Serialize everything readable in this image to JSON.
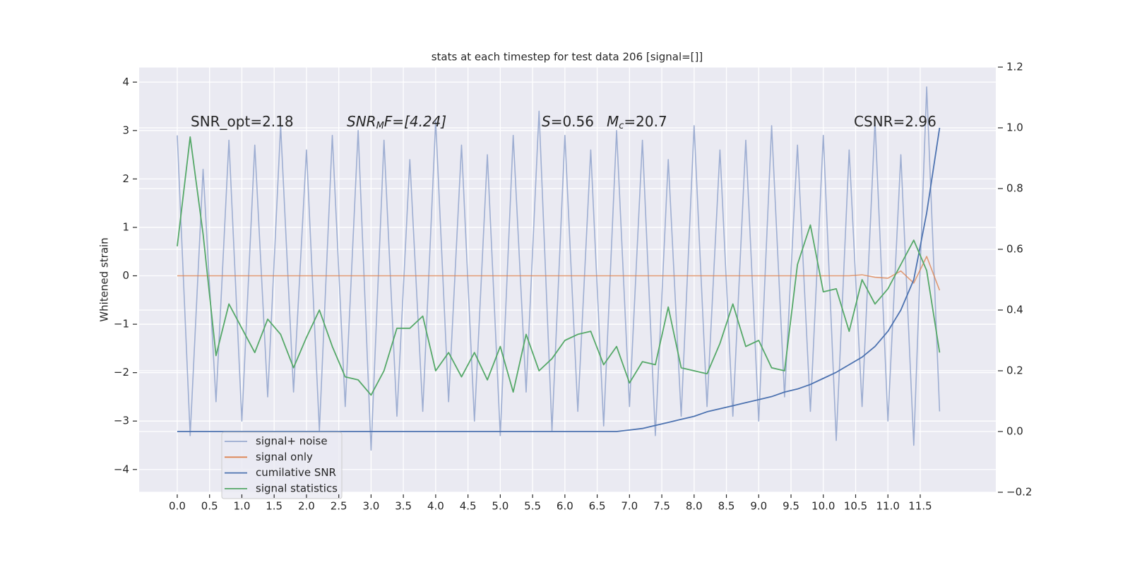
{
  "chart_data": {
    "type": "line",
    "title": "stats at each timestep for test data 206 [signal=[]]",
    "ylabel": "Whitened strain",
    "grid": true,
    "legend": "lower left",
    "xlim": [
      -0.59,
      12.67
    ],
    "ylim": [
      -4.47,
      4.31
    ],
    "y2lim": [
      -0.2,
      1.2
    ],
    "xticks": [
      {
        "value": 0,
        "label": "0.0"
      },
      {
        "value": 0.5,
        "label": "0.5"
      },
      {
        "value": 1,
        "label": "1.0"
      },
      {
        "value": 1.5,
        "label": "1.5"
      },
      {
        "value": 2,
        "label": "2.0"
      },
      {
        "value": 2.5,
        "label": "2.5"
      },
      {
        "value": 3,
        "label": "3.0"
      },
      {
        "value": 3.5,
        "label": "3.5"
      },
      {
        "value": 4,
        "label": "4.0"
      },
      {
        "value": 4.5,
        "label": "4.5"
      },
      {
        "value": 5,
        "label": "5.0"
      },
      {
        "value": 5.5,
        "label": "5.5"
      },
      {
        "value": 6,
        "label": "6.0"
      },
      {
        "value": 6.5,
        "label": "6.5"
      },
      {
        "value": 7,
        "label": "7.0"
      },
      {
        "value": 7.5,
        "label": "7.5"
      },
      {
        "value": 8,
        "label": "8.0"
      },
      {
        "value": 8.5,
        "label": "8.5"
      },
      {
        "value": 9,
        "label": "9.0"
      },
      {
        "value": 9.5,
        "label": "9.5"
      },
      {
        "value": 10,
        "label": "10.0"
      },
      {
        "value": 10.5,
        "label": "10.5"
      },
      {
        "value": 11,
        "label": "11.0"
      },
      {
        "value": 11.5,
        "label": "11.5"
      }
    ],
    "yticks": [
      {
        "value": -4,
        "label": "−4"
      },
      {
        "value": -3,
        "label": "−3"
      },
      {
        "value": -2,
        "label": "−2"
      },
      {
        "value": -1,
        "label": "−1"
      },
      0,
      1,
      2,
      3,
      4
    ],
    "y2ticks": [
      {
        "value": -0.2,
        "label": "−0.2"
      },
      {
        "value": 0,
        "label": "0.0"
      },
      {
        "value": 0.2,
        "label": "0.2"
      },
      {
        "value": 0.4,
        "label": "0.4"
      },
      {
        "value": 0.6,
        "label": "0.6"
      },
      {
        "value": 0.8,
        "label": "0.8"
      },
      {
        "value": 1,
        "label": "1.0"
      },
      {
        "value": 1.2,
        "label": "1.2"
      }
    ],
    "x": [
      0,
      0.2,
      0.4,
      0.6,
      0.8,
      1,
      1.2,
      1.4,
      1.6,
      1.8,
      2,
      2.2,
      2.4,
      2.6,
      2.8,
      3,
      3.2,
      3.4,
      3.6,
      3.8,
      4,
      4.2,
      4.4,
      4.6,
      4.8,
      5,
      5.2,
      5.4,
      5.6,
      5.8,
      6,
      6.2,
      6.4,
      6.6,
      6.8,
      7,
      7.2,
      7.4,
      7.6,
      7.8,
      8,
      8.2,
      8.4,
      8.6,
      8.8,
      9,
      9.2,
      9.4,
      9.6,
      9.8,
      10,
      10.2,
      10.4,
      10.6,
      10.8,
      11,
      11.2,
      11.4,
      11.6,
      11.8
    ],
    "series": [
      {
        "name": "signal+ noise",
        "color": "#9aabd0",
        "values": [
          2.9,
          -3.3,
          2.2,
          -2.6,
          2.8,
          -3.0,
          2.7,
          -2.5,
          3.1,
          -2.4,
          2.6,
          -3.2,
          2.9,
          -2.7,
          3.0,
          -3.6,
          2.8,
          -2.9,
          2.4,
          -2.8,
          3.2,
          -2.6,
          2.7,
          -3.0,
          2.5,
          -3.3,
          2.9,
          -2.4,
          3.4,
          -3.2,
          2.9,
          -2.8,
          2.6,
          -3.1,
          3.0,
          -2.7,
          2.8,
          -3.3,
          2.4,
          -2.9,
          3.1,
          -2.7,
          2.6,
          -2.9,
          2.8,
          -3.0,
          3.1,
          -2.5,
          2.7,
          -2.8,
          2.9,
          -3.4,
          2.6,
          -2.7,
          3.2,
          -3.0,
          2.5,
          -3.5,
          3.9,
          -2.8
        ]
      },
      {
        "name": "signal only",
        "color": "#dd8452",
        "values": [
          0,
          0,
          0,
          0,
          0,
          0,
          0,
          0,
          0,
          0,
          0,
          0,
          0,
          0,
          0,
          0,
          0,
          0,
          0,
          0,
          0,
          0,
          0,
          0,
          0,
          0,
          0,
          0,
          0,
          0,
          0,
          0,
          0,
          0,
          0,
          0,
          0,
          0,
          0,
          0,
          0,
          0,
          0,
          0,
          0,
          0,
          0,
          0,
          0,
          0,
          0,
          0,
          0,
          0.02,
          -0.03,
          -0.05,
          0.1,
          -0.15,
          0.4,
          -0.3
        ]
      },
      {
        "name": "cumilative SNR",
        "color": "#4c72b0",
        "axis": "y2",
        "values": [
          0,
          0,
          0,
          0,
          0,
          0,
          0,
          0,
          0,
          0,
          0,
          0,
          0,
          0,
          0,
          0,
          0,
          0,
          0,
          0,
          0,
          0,
          0,
          0,
          0,
          0,
          0,
          0,
          0,
          0,
          0,
          0,
          0,
          0,
          0,
          0.005,
          0.01,
          0.02,
          0.03,
          0.04,
          0.05,
          0.065,
          0.075,
          0.085,
          0.095,
          0.105,
          0.115,
          0.13,
          0.14,
          0.155,
          0.175,
          0.195,
          0.22,
          0.245,
          0.28,
          0.33,
          0.4,
          0.5,
          0.72,
          1.0
        ]
      },
      {
        "name": "signal statistics",
        "color": "#55a868",
        "axis": "y2",
        "values": [
          0.61,
          0.97,
          0.65,
          0.25,
          0.42,
          0.34,
          0.26,
          0.37,
          0.32,
          0.21,
          0.31,
          0.4,
          0.28,
          0.18,
          0.17,
          0.12,
          0.2,
          0.34,
          0.34,
          0.38,
          0.2,
          0.26,
          0.18,
          0.26,
          0.17,
          0.28,
          0.13,
          0.32,
          0.2,
          0.24,
          0.3,
          0.32,
          0.33,
          0.22,
          0.28,
          0.16,
          0.23,
          0.22,
          0.41,
          0.21,
          0.2,
          0.19,
          0.29,
          0.42,
          0.28,
          0.3,
          0.21,
          0.2,
          0.55,
          0.68,
          0.46,
          0.47,
          0.33,
          0.5,
          0.42,
          0.47,
          0.55,
          0.63,
          0.53,
          0.26
        ]
      }
    ],
    "annotations": [
      {
        "parts": [
          "SNR_opt=2.18"
        ]
      },
      {
        "parts": [
          "SNR",
          "M",
          "F=[4.24]"
        ]
      },
      {
        "parts": [
          "S",
          "=0.56"
        ]
      },
      {
        "parts": [
          "M",
          "c",
          "=20.7"
        ]
      },
      {
        "parts": [
          "CSNR=2.96"
        ]
      }
    ]
  }
}
